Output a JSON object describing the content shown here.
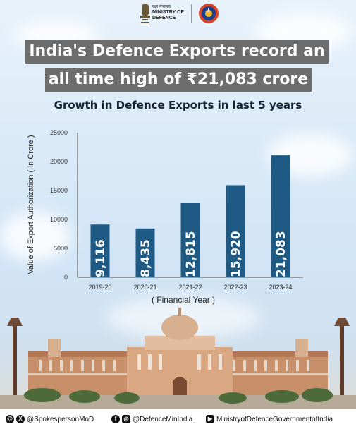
{
  "header": {
    "ministry_hindi": "रक्षा मंत्रालय",
    "ministry_english_1": "MINISTRY OF",
    "ministry_english_2": "DEFENCE",
    "emblem_icon": "national-emblem-icon",
    "logo_icon": "defence-round-logo-icon"
  },
  "title": {
    "line1": "India's Defence Exports record an",
    "line2": "all time high of ₹21,083 crore"
  },
  "subtitle": "Growth in Defence Exports in last 5 years",
  "chart_data": {
    "type": "bar",
    "categories": [
      "2019-20",
      "2020-21",
      "2021-22",
      "2022-23",
      "2023-24"
    ],
    "values": [
      9116,
      8435,
      12815,
      15920,
      21083
    ],
    "value_labels": [
      "9,116",
      "8,435",
      "12,815",
      "15,920",
      "21,083"
    ],
    "ylim": [
      0,
      25000
    ],
    "yticks": [
      "0",
      "5000",
      "10000",
      "15000",
      "20000",
      "25000"
    ],
    "ylabel": "Value of Export Authorization ( In Crore )",
    "xlabel": "( Financial Year )",
    "bar_color": "#1f5a84",
    "grid": false
  },
  "footer": {
    "x_handle": "@SpokespersonMoD",
    "fb_insta_handle": "@DefenceMinIndia",
    "youtube_handle": "MinistryofDefenceGovernmentofIndia"
  }
}
